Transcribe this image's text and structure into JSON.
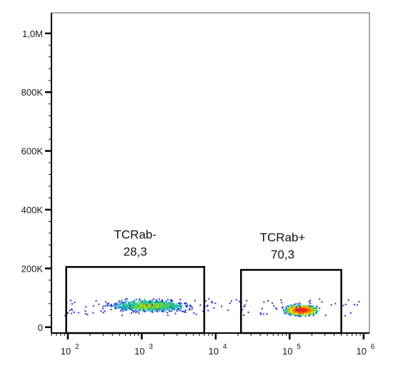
{
  "chart_data": {
    "type": "scatter",
    "title": "",
    "xlabel": "",
    "ylabel": "",
    "x_scale": "log",
    "xlim": [
      60,
      1200000
    ],
    "ylim": [
      -20000,
      1070000
    ],
    "x_ticks": [
      {
        "value": 100,
        "base": "10",
        "exp": "2"
      },
      {
        "value": 1000,
        "base": "10",
        "exp": "3"
      },
      {
        "value": 10000,
        "base": "10",
        "exp": "4"
      },
      {
        "value": 100000,
        "base": "10",
        "exp": "5"
      },
      {
        "value": 1000000,
        "base": "10",
        "exp": "6"
      }
    ],
    "y_ticks": [
      {
        "value": 0,
        "label": "0"
      },
      {
        "value": 200000,
        "label": "200K"
      },
      {
        "value": 400000,
        "label": "400K"
      },
      {
        "value": 600000,
        "label": "600K"
      },
      {
        "value": 800000,
        "label": "800K"
      },
      {
        "value": 1000000,
        "label": "1,0M"
      }
    ],
    "grid": false,
    "gates": [
      {
        "name": "TCRab-",
        "percent": "28,3",
        "x_range": [
          95,
          7000
        ],
        "y_range": [
          -20000,
          205000
        ]
      },
      {
        "name": "TCRab+",
        "percent": "70,3",
        "x_range": [
          22000,
          500000
        ],
        "y_range": [
          -20000,
          195000
        ]
      }
    ],
    "populations": [
      {
        "name": "TCRab-",
        "x_center_log10": 3.1,
        "x_spread_log10": 0.55,
        "y_center": 75000,
        "y_spread": 22000,
        "density": "medium",
        "count": 900
      },
      {
        "name": "TCRab+",
        "x_center_log10": 5.15,
        "x_spread_log10": 0.22,
        "y_center": 60000,
        "y_spread": 18000,
        "density": "high",
        "count": 1400
      }
    ],
    "density_colors": [
      "#2233cc",
      "#1a8fd8",
      "#19c2a0",
      "#7ed321",
      "#ffe000",
      "#ff7f00",
      "#e52a1a"
    ]
  }
}
